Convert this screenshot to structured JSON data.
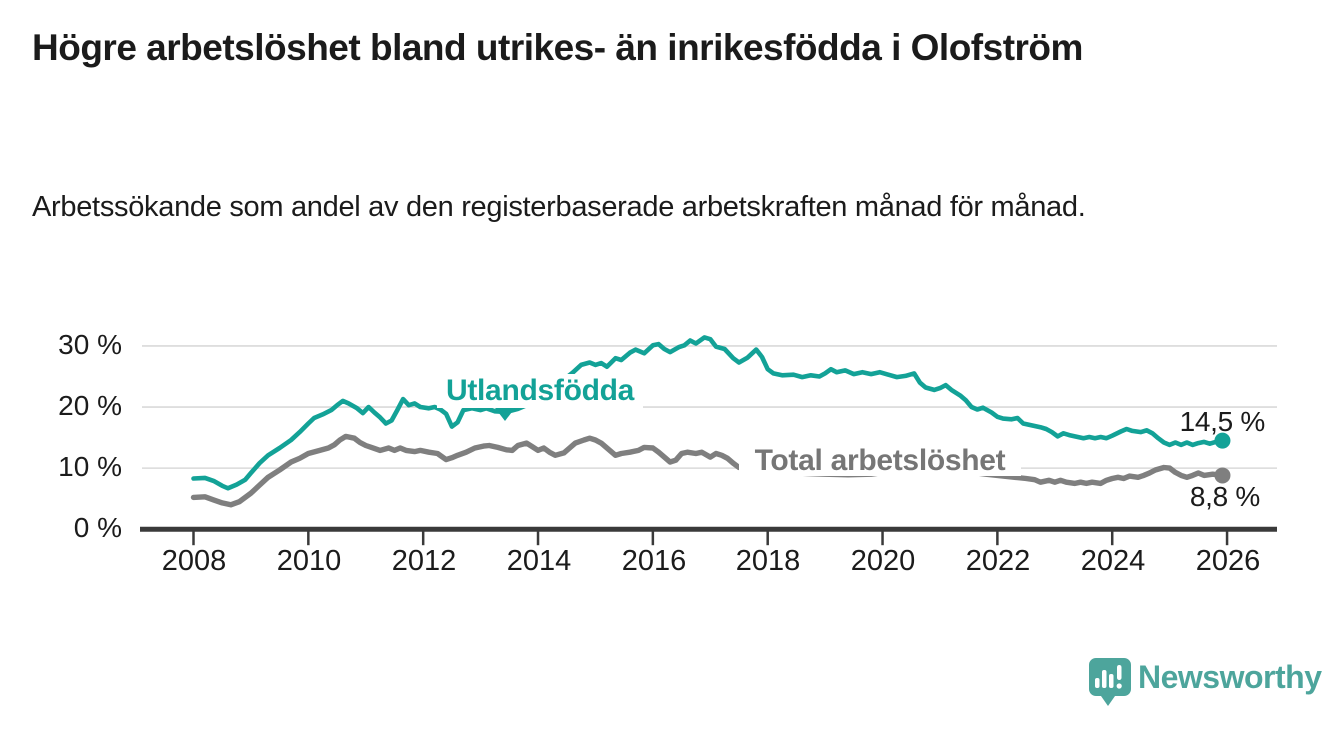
{
  "header": {
    "title": "Högre arbetslöshet bland utrikes- än inrikesfödda i Olofström",
    "subtitle": "Arbetssökande som andel av den registerbaserade arbetskraften månad för månad."
  },
  "chart_data": {
    "type": "line",
    "title": "Högre arbetslöshet bland utrikes- än inrikesfödda i Olofström",
    "subtitle": "Arbetssökande som andel av den registerbaserade arbetskraften månad för månad.",
    "grid": true,
    "legend_position": "inline-labels",
    "x_axis": {
      "unit": "year",
      "range": [
        2007.1,
        2026.9
      ],
      "tick_labels": [
        "2008",
        "2010",
        "2012",
        "2014",
        "2016",
        "2018",
        "2020",
        "2022",
        "2024",
        "2026"
      ],
      "tick_values": [
        2008,
        2010,
        2012,
        2014,
        2016,
        2018,
        2020,
        2022,
        2024,
        2026
      ]
    },
    "y_axis": {
      "unit": "%",
      "range": [
        0,
        33
      ],
      "tick_labels": [
        "0 %",
        "10 %",
        "20 %",
        "30 %"
      ],
      "tick_values": [
        0,
        10,
        20,
        30
      ]
    },
    "series": [
      {
        "name": "Utlandsfödda",
        "color": "#13a297",
        "end_label": "14,5 %",
        "end_value": 14.5,
        "points": [
          [
            2008.0,
            8.3
          ],
          [
            2008.2,
            8.4
          ],
          [
            2008.35,
            7.9
          ],
          [
            2008.5,
            7.1
          ],
          [
            2008.6,
            6.7
          ],
          [
            2008.75,
            7.3
          ],
          [
            2008.9,
            8.1
          ],
          [
            2009.0,
            9.2
          ],
          [
            2009.15,
            10.8
          ],
          [
            2009.3,
            12.1
          ],
          [
            2009.5,
            13.3
          ],
          [
            2009.7,
            14.6
          ],
          [
            2009.85,
            15.9
          ],
          [
            2010.0,
            17.3
          ],
          [
            2010.1,
            18.2
          ],
          [
            2010.25,
            18.8
          ],
          [
            2010.4,
            19.5
          ],
          [
            2010.5,
            20.3
          ],
          [
            2010.6,
            21.0
          ],
          [
            2010.7,
            20.6
          ],
          [
            2010.85,
            19.8
          ],
          [
            2010.95,
            19.0
          ],
          [
            2011.05,
            20.0
          ],
          [
            2011.15,
            19.1
          ],
          [
            2011.25,
            18.3
          ],
          [
            2011.35,
            17.3
          ],
          [
            2011.45,
            17.8
          ],
          [
            2011.55,
            19.5
          ],
          [
            2011.65,
            21.3
          ],
          [
            2011.75,
            20.3
          ],
          [
            2011.85,
            20.6
          ],
          [
            2011.95,
            20.0
          ],
          [
            2012.1,
            19.8
          ],
          [
            2012.2,
            20.0
          ],
          [
            2012.3,
            19.6
          ],
          [
            2012.4,
            18.9
          ],
          [
            2012.5,
            16.8
          ],
          [
            2012.6,
            17.5
          ],
          [
            2012.7,
            19.5
          ],
          [
            2012.85,
            19.8
          ],
          [
            2013.0,
            19.5
          ],
          [
            2013.1,
            19.8
          ],
          [
            2013.25,
            19.3
          ],
          [
            2013.45,
            19.2
          ],
          [
            2013.65,
            19.7
          ],
          [
            2013.85,
            20.5
          ],
          [
            2014.05,
            21.5
          ],
          [
            2014.25,
            23.0
          ],
          [
            2014.45,
            24.5
          ],
          [
            2014.6,
            25.6
          ],
          [
            2014.75,
            26.9
          ],
          [
            2014.9,
            27.3
          ],
          [
            2015.0,
            26.9
          ],
          [
            2015.1,
            27.2
          ],
          [
            2015.2,
            26.6
          ],
          [
            2015.35,
            28.0
          ],
          [
            2015.45,
            27.7
          ],
          [
            2015.6,
            28.9
          ],
          [
            2015.7,
            29.4
          ],
          [
            2015.85,
            28.8
          ],
          [
            2016.0,
            30.1
          ],
          [
            2016.1,
            30.3
          ],
          [
            2016.2,
            29.5
          ],
          [
            2016.3,
            29.0
          ],
          [
            2016.45,
            29.8
          ],
          [
            2016.55,
            30.1
          ],
          [
            2016.65,
            30.9
          ],
          [
            2016.75,
            30.4
          ],
          [
            2016.9,
            31.4
          ],
          [
            2017.0,
            31.1
          ],
          [
            2017.1,
            29.9
          ],
          [
            2017.25,
            29.5
          ],
          [
            2017.4,
            28.0
          ],
          [
            2017.5,
            27.3
          ],
          [
            2017.65,
            28.1
          ],
          [
            2017.8,
            29.4
          ],
          [
            2017.9,
            28.2
          ],
          [
            2018.0,
            26.2
          ],
          [
            2018.1,
            25.5
          ],
          [
            2018.25,
            25.2
          ],
          [
            2018.45,
            25.3
          ],
          [
            2018.6,
            24.9
          ],
          [
            2018.75,
            25.2
          ],
          [
            2018.9,
            25.0
          ],
          [
            2019.0,
            25.5
          ],
          [
            2019.1,
            26.2
          ],
          [
            2019.2,
            25.7
          ],
          [
            2019.35,
            26.0
          ],
          [
            2019.5,
            25.4
          ],
          [
            2019.65,
            25.7
          ],
          [
            2019.8,
            25.4
          ],
          [
            2019.95,
            25.7
          ],
          [
            2020.1,
            25.3
          ],
          [
            2020.25,
            24.9
          ],
          [
            2020.4,
            25.1
          ],
          [
            2020.55,
            25.5
          ],
          [
            2020.65,
            24.0
          ],
          [
            2020.75,
            23.2
          ],
          [
            2020.9,
            22.8
          ],
          [
            2021.0,
            23.1
          ],
          [
            2021.1,
            23.6
          ],
          [
            2021.2,
            22.8
          ],
          [
            2021.35,
            21.9
          ],
          [
            2021.45,
            21.1
          ],
          [
            2021.55,
            20.0
          ],
          [
            2021.65,
            19.6
          ],
          [
            2021.75,
            19.9
          ],
          [
            2021.9,
            19.1
          ],
          [
            2022.0,
            18.4
          ],
          [
            2022.1,
            18.1
          ],
          [
            2022.25,
            18.0
          ],
          [
            2022.35,
            18.2
          ],
          [
            2022.45,
            17.3
          ],
          [
            2022.6,
            17.0
          ],
          [
            2022.75,
            16.7
          ],
          [
            2022.85,
            16.4
          ],
          [
            2022.95,
            15.9
          ],
          [
            2023.05,
            15.2
          ],
          [
            2023.15,
            15.7
          ],
          [
            2023.25,
            15.4
          ],
          [
            2023.4,
            15.1
          ],
          [
            2023.5,
            14.9
          ],
          [
            2023.6,
            15.1
          ],
          [
            2023.7,
            14.9
          ],
          [
            2023.8,
            15.1
          ],
          [
            2023.9,
            14.9
          ],
          [
            2024.0,
            15.3
          ],
          [
            2024.15,
            16.0
          ],
          [
            2024.25,
            16.4
          ],
          [
            2024.35,
            16.1
          ],
          [
            2024.5,
            15.9
          ],
          [
            2024.6,
            16.2
          ],
          [
            2024.7,
            15.7
          ],
          [
            2024.8,
            14.9
          ],
          [
            2024.9,
            14.2
          ],
          [
            2025.0,
            13.8
          ],
          [
            2025.1,
            14.2
          ],
          [
            2025.2,
            13.8
          ],
          [
            2025.3,
            14.2
          ],
          [
            2025.4,
            13.8
          ],
          [
            2025.5,
            14.1
          ],
          [
            2025.6,
            14.3
          ],
          [
            2025.7,
            14.0
          ],
          [
            2025.8,
            14.3
          ],
          [
            2025.92,
            14.5
          ]
        ]
      },
      {
        "name": "Total arbetslöshet",
        "color": "#7f7f7f",
        "end_label": "8,8 %",
        "end_value": 8.8,
        "points": [
          [
            2008.0,
            5.2
          ],
          [
            2008.2,
            5.3
          ],
          [
            2008.35,
            4.8
          ],
          [
            2008.5,
            4.3
          ],
          [
            2008.65,
            4.0
          ],
          [
            2008.8,
            4.5
          ],
          [
            2009.0,
            5.9
          ],
          [
            2009.15,
            7.2
          ],
          [
            2009.3,
            8.5
          ],
          [
            2009.5,
            9.7
          ],
          [
            2009.7,
            11.0
          ],
          [
            2009.85,
            11.6
          ],
          [
            2010.0,
            12.4
          ],
          [
            2010.2,
            12.9
          ],
          [
            2010.35,
            13.3
          ],
          [
            2010.45,
            13.8
          ],
          [
            2010.55,
            14.6
          ],
          [
            2010.65,
            15.2
          ],
          [
            2010.8,
            14.9
          ],
          [
            2010.9,
            14.2
          ],
          [
            2011.0,
            13.7
          ],
          [
            2011.1,
            13.4
          ],
          [
            2011.25,
            12.9
          ],
          [
            2011.4,
            13.3
          ],
          [
            2011.5,
            12.9
          ],
          [
            2011.6,
            13.3
          ],
          [
            2011.7,
            12.9
          ],
          [
            2011.85,
            12.7
          ],
          [
            2011.95,
            12.9
          ],
          [
            2012.1,
            12.6
          ],
          [
            2012.25,
            12.4
          ],
          [
            2012.4,
            11.4
          ],
          [
            2012.5,
            11.7
          ],
          [
            2012.6,
            12.1
          ],
          [
            2012.75,
            12.6
          ],
          [
            2012.9,
            13.3
          ],
          [
            2013.05,
            13.6
          ],
          [
            2013.15,
            13.7
          ],
          [
            2013.3,
            13.4
          ],
          [
            2013.45,
            13.0
          ],
          [
            2013.55,
            12.9
          ],
          [
            2013.65,
            13.7
          ],
          [
            2013.8,
            14.1
          ],
          [
            2013.9,
            13.5
          ],
          [
            2014.0,
            12.9
          ],
          [
            2014.1,
            13.3
          ],
          [
            2014.2,
            12.6
          ],
          [
            2014.3,
            12.1
          ],
          [
            2014.45,
            12.5
          ],
          [
            2014.55,
            13.3
          ],
          [
            2014.65,
            14.1
          ],
          [
            2014.8,
            14.6
          ],
          [
            2014.9,
            14.9
          ],
          [
            2015.0,
            14.6
          ],
          [
            2015.1,
            14.1
          ],
          [
            2015.25,
            12.9
          ],
          [
            2015.35,
            12.1
          ],
          [
            2015.45,
            12.4
          ],
          [
            2015.6,
            12.6
          ],
          [
            2015.75,
            12.9
          ],
          [
            2015.85,
            13.4
          ],
          [
            2016.0,
            13.3
          ],
          [
            2016.1,
            12.6
          ],
          [
            2016.2,
            11.8
          ],
          [
            2016.3,
            11.0
          ],
          [
            2016.4,
            11.3
          ],
          [
            2016.5,
            12.4
          ],
          [
            2016.6,
            12.6
          ],
          [
            2016.75,
            12.4
          ],
          [
            2016.85,
            12.6
          ],
          [
            2017.0,
            11.8
          ],
          [
            2017.1,
            12.4
          ],
          [
            2017.2,
            12.1
          ],
          [
            2017.3,
            11.6
          ],
          [
            2017.4,
            10.8
          ],
          [
            2017.5,
            10.1
          ],
          [
            2017.7,
            9.9
          ],
          [
            2018.0,
            9.6
          ],
          [
            2018.3,
            9.3
          ],
          [
            2018.7,
            9.1
          ],
          [
            2019.0,
            9.0
          ],
          [
            2019.4,
            8.9
          ],
          [
            2019.8,
            9.0
          ],
          [
            2020.1,
            9.4
          ],
          [
            2020.4,
            10.2
          ],
          [
            2020.7,
            10.4
          ],
          [
            2021.0,
            10.0
          ],
          [
            2021.4,
            9.5
          ],
          [
            2021.8,
            9.0
          ],
          [
            2022.1,
            8.7
          ],
          [
            2022.3,
            8.5
          ],
          [
            2022.5,
            8.3
          ],
          [
            2022.65,
            8.1
          ],
          [
            2022.75,
            7.7
          ],
          [
            2022.9,
            8.0
          ],
          [
            2023.0,
            7.7
          ],
          [
            2023.1,
            8.0
          ],
          [
            2023.2,
            7.7
          ],
          [
            2023.35,
            7.5
          ],
          [
            2023.45,
            7.7
          ],
          [
            2023.55,
            7.5
          ],
          [
            2023.65,
            7.7
          ],
          [
            2023.8,
            7.5
          ],
          [
            2023.9,
            8.0
          ],
          [
            2024.0,
            8.3
          ],
          [
            2024.1,
            8.5
          ],
          [
            2024.2,
            8.3
          ],
          [
            2024.3,
            8.7
          ],
          [
            2024.45,
            8.5
          ],
          [
            2024.55,
            8.8
          ],
          [
            2024.65,
            9.2
          ],
          [
            2024.75,
            9.7
          ],
          [
            2024.9,
            10.1
          ],
          [
            2025.0,
            10.0
          ],
          [
            2025.1,
            9.3
          ],
          [
            2025.2,
            8.8
          ],
          [
            2025.3,
            8.5
          ],
          [
            2025.4,
            8.8
          ],
          [
            2025.5,
            9.2
          ],
          [
            2025.6,
            8.8
          ],
          [
            2025.75,
            9.0
          ],
          [
            2025.92,
            8.8
          ]
        ]
      }
    ]
  },
  "branding": {
    "logo_text": "Newsworthy",
    "logo_color": "#4da59c"
  },
  "colors": {
    "background": "#ffffff",
    "text": "#1b1b1b",
    "teal_series": "#13a297",
    "gray_series": "#7f7f7f",
    "gray_label": "#767676",
    "gridline": "#d9d9d9",
    "axis": "#3a3a3a"
  }
}
